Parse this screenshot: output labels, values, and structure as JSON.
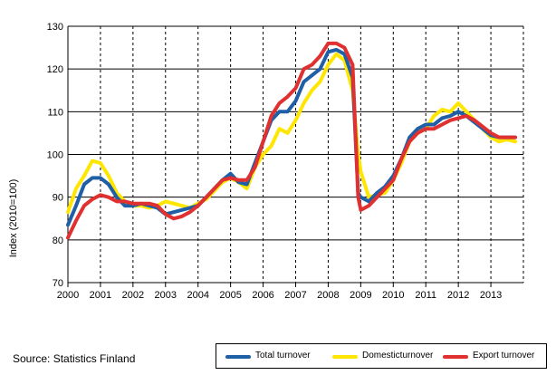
{
  "chart_data": {
    "type": "line",
    "title": "",
    "xlabel": "",
    "ylabel": "Index (2010=100)",
    "ylim": [
      70,
      130
    ],
    "xlim": [
      2000,
      2014
    ],
    "yticks": [
      70,
      80,
      90,
      100,
      110,
      120,
      130
    ],
    "xticks": [
      "2000",
      "2001",
      "2002",
      "2003",
      "2004",
      "2005",
      "2006",
      "2007",
      "2008",
      "2009",
      "2010",
      "2011",
      "2012",
      "2013"
    ],
    "grid": "horizontal solid, vertical dashed at years",
    "legend_position": "bottom-right",
    "series": [
      {
        "name": "Total turnover",
        "color": "#1f5fa6",
        "points": [
          [
            2000.0,
            83.5
          ],
          [
            2000.25,
            88
          ],
          [
            2000.5,
            93
          ],
          [
            2000.75,
            94.5
          ],
          [
            2001.0,
            94.5
          ],
          [
            2001.25,
            93
          ],
          [
            2001.5,
            90
          ],
          [
            2001.75,
            88
          ],
          [
            2002.0,
            88
          ],
          [
            2002.25,
            88.5
          ],
          [
            2002.5,
            88
          ],
          [
            2002.75,
            87.5
          ],
          [
            2003.0,
            86
          ],
          [
            2003.25,
            86.5
          ],
          [
            2003.5,
            87
          ],
          [
            2003.75,
            87.5
          ],
          [
            2004.0,
            88
          ],
          [
            2004.25,
            90
          ],
          [
            2004.5,
            92
          ],
          [
            2004.75,
            94
          ],
          [
            2005.0,
            95.5
          ],
          [
            2005.25,
            93.5
          ],
          [
            2005.5,
            93
          ],
          [
            2005.75,
            98
          ],
          [
            2006.0,
            103
          ],
          [
            2006.25,
            108
          ],
          [
            2006.5,
            110
          ],
          [
            2006.75,
            110
          ],
          [
            2007.0,
            112.5
          ],
          [
            2007.25,
            117
          ],
          [
            2007.5,
            118.5
          ],
          [
            2007.75,
            120
          ],
          [
            2008.0,
            124
          ],
          [
            2008.25,
            124.5
          ],
          [
            2008.5,
            123.5
          ],
          [
            2008.75,
            118
          ],
          [
            2008.92,
            91
          ],
          [
            2009.0,
            90
          ],
          [
            2009.25,
            89
          ],
          [
            2009.5,
            91
          ],
          [
            2009.75,
            92.5
          ],
          [
            2010.0,
            95
          ],
          [
            2010.25,
            99
          ],
          [
            2010.5,
            104
          ],
          [
            2010.75,
            106
          ],
          [
            2011.0,
            107
          ],
          [
            2011.25,
            107
          ],
          [
            2011.5,
            108.5
          ],
          [
            2011.75,
            109
          ],
          [
            2012.0,
            110
          ],
          [
            2012.25,
            109
          ],
          [
            2012.5,
            107.5
          ],
          [
            2012.75,
            106
          ],
          [
            2013.0,
            104.5
          ],
          [
            2013.25,
            104
          ],
          [
            2013.5,
            104
          ],
          [
            2013.75,
            104
          ]
        ]
      },
      {
        "name": "Domestic turnover",
        "color": "#ffe600",
        "points": [
          [
            2000.0,
            86.5
          ],
          [
            2000.25,
            92
          ],
          [
            2000.5,
            95
          ],
          [
            2000.75,
            98.5
          ],
          [
            2001.0,
            98
          ],
          [
            2001.25,
            95
          ],
          [
            2001.5,
            91
          ],
          [
            2001.75,
            89
          ],
          [
            2002.0,
            88
          ],
          [
            2002.25,
            88
          ],
          [
            2002.5,
            87.5
          ],
          [
            2002.75,
            88
          ],
          [
            2003.0,
            89
          ],
          [
            2003.25,
            88.5
          ],
          [
            2003.5,
            88
          ],
          [
            2003.75,
            87.5
          ],
          [
            2004.0,
            88.5
          ],
          [
            2004.25,
            89.5
          ],
          [
            2004.5,
            91.5
          ],
          [
            2004.75,
            93.5
          ],
          [
            2005.0,
            94.5
          ],
          [
            2005.25,
            93.5
          ],
          [
            2005.5,
            92
          ],
          [
            2005.75,
            97
          ],
          [
            2006.0,
            100
          ],
          [
            2006.25,
            102
          ],
          [
            2006.5,
            106
          ],
          [
            2006.75,
            105
          ],
          [
            2007.0,
            108
          ],
          [
            2007.25,
            112
          ],
          [
            2007.5,
            115
          ],
          [
            2007.75,
            117
          ],
          [
            2008.0,
            121
          ],
          [
            2008.25,
            123.5
          ],
          [
            2008.5,
            122
          ],
          [
            2008.75,
            115
          ],
          [
            2008.92,
            100
          ],
          [
            2009.0,
            96
          ],
          [
            2009.25,
            90
          ],
          [
            2009.5,
            90.5
          ],
          [
            2009.75,
            91
          ],
          [
            2010.0,
            94
          ],
          [
            2010.25,
            98
          ],
          [
            2010.5,
            103
          ],
          [
            2010.75,
            105
          ],
          [
            2011.0,
            106
          ],
          [
            2011.25,
            109
          ],
          [
            2011.5,
            110.5
          ],
          [
            2011.75,
            110
          ],
          [
            2012.0,
            112
          ],
          [
            2012.25,
            110
          ],
          [
            2012.5,
            108
          ],
          [
            2012.75,
            106
          ],
          [
            2013.0,
            104
          ],
          [
            2013.25,
            103
          ],
          [
            2013.5,
            103.5
          ],
          [
            2013.75,
            103
          ]
        ]
      },
      {
        "name": "Export turnover",
        "color": "#e03030",
        "points": [
          [
            2000.0,
            80.5
          ],
          [
            2000.25,
            84.5
          ],
          [
            2000.5,
            88
          ],
          [
            2000.75,
            89.5
          ],
          [
            2001.0,
            90.5
          ],
          [
            2001.25,
            90
          ],
          [
            2001.5,
            89
          ],
          [
            2001.75,
            89
          ],
          [
            2002.0,
            88.5
          ],
          [
            2002.25,
            88.5
          ],
          [
            2002.5,
            88.5
          ],
          [
            2002.75,
            88
          ],
          [
            2003.0,
            86
          ],
          [
            2003.25,
            85
          ],
          [
            2003.5,
            85.5
          ],
          [
            2003.75,
            86.5
          ],
          [
            2004.0,
            88
          ],
          [
            2004.25,
            90
          ],
          [
            2004.5,
            92
          ],
          [
            2004.75,
            94
          ],
          [
            2005.0,
            94.5
          ],
          [
            2005.25,
            94
          ],
          [
            2005.5,
            94
          ],
          [
            2005.75,
            97
          ],
          [
            2006.0,
            103
          ],
          [
            2006.25,
            109
          ],
          [
            2006.5,
            112
          ],
          [
            2006.75,
            113.5
          ],
          [
            2007.0,
            115.5
          ],
          [
            2007.25,
            120
          ],
          [
            2007.5,
            121
          ],
          [
            2007.75,
            123
          ],
          [
            2008.0,
            126
          ],
          [
            2008.25,
            126
          ],
          [
            2008.5,
            125
          ],
          [
            2008.75,
            121
          ],
          [
            2008.92,
            90
          ],
          [
            2009.0,
            87
          ],
          [
            2009.25,
            88
          ],
          [
            2009.5,
            90
          ],
          [
            2009.75,
            92
          ],
          [
            2010.0,
            94
          ],
          [
            2010.25,
            99
          ],
          [
            2010.5,
            103
          ],
          [
            2010.75,
            105
          ],
          [
            2011.0,
            106
          ],
          [
            2011.25,
            106
          ],
          [
            2011.5,
            107
          ],
          [
            2011.75,
            108
          ],
          [
            2012.0,
            108.5
          ],
          [
            2012.25,
            109
          ],
          [
            2012.5,
            108
          ],
          [
            2012.75,
            106.5
          ],
          [
            2013.0,
            105
          ],
          [
            2013.25,
            104
          ],
          [
            2013.5,
            104
          ],
          [
            2013.75,
            104
          ]
        ]
      }
    ]
  },
  "source": "Source: Statistics Finland",
  "legend": {
    "items": [
      {
        "label": "Total turnover",
        "color": "#1f5fa6"
      },
      {
        "label": "Domesticturnover",
        "color": "#ffe600"
      },
      {
        "label": "Export turnover",
        "color": "#e03030"
      }
    ]
  }
}
